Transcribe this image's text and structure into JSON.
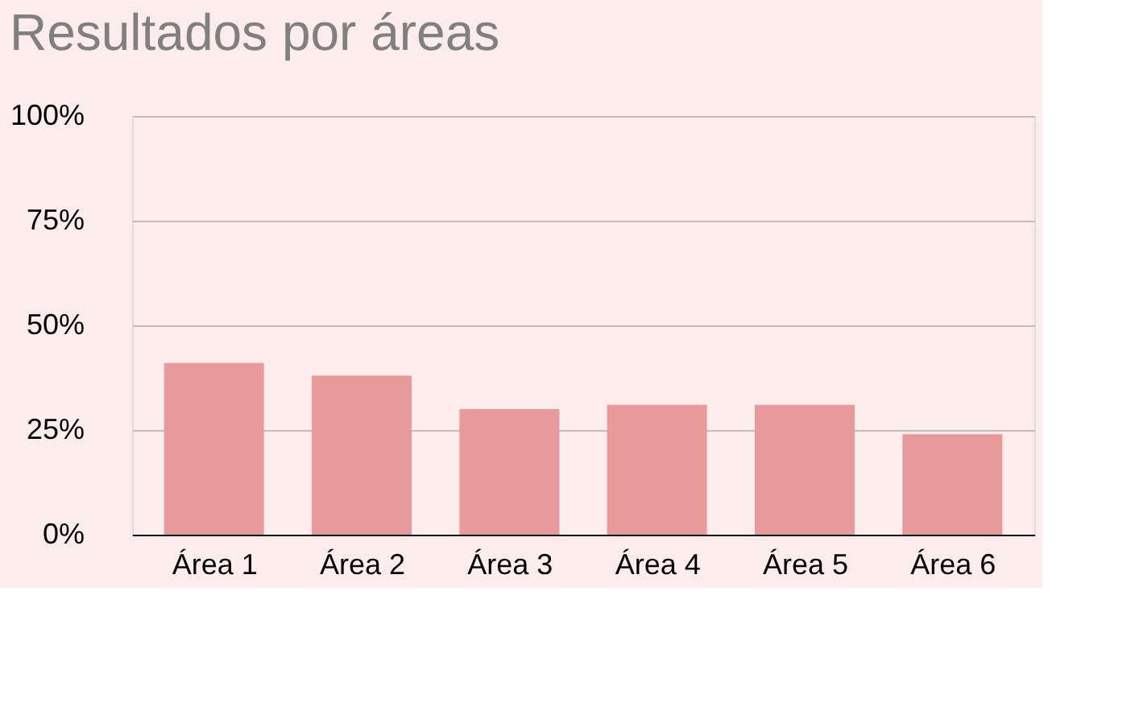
{
  "chart_data": {
    "type": "bar",
    "title": "Resultados por áreas",
    "categories": [
      "Área 1",
      "Área 2",
      "Área 3",
      "Área 4",
      "Área 5",
      "Área 6"
    ],
    "values": [
      41,
      38,
      30,
      31,
      31,
      24
    ],
    "color": "#e89a9a",
    "ylim": [
      0,
      100
    ],
    "yticks": [
      {
        "value": 0,
        "label": "0%"
      },
      {
        "value": 25,
        "label": "25%"
      },
      {
        "value": 50,
        "label": "50%"
      },
      {
        "value": 75,
        "label": "75%"
      },
      {
        "value": 100,
        "label": "100%"
      }
    ],
    "grid": "y"
  }
}
